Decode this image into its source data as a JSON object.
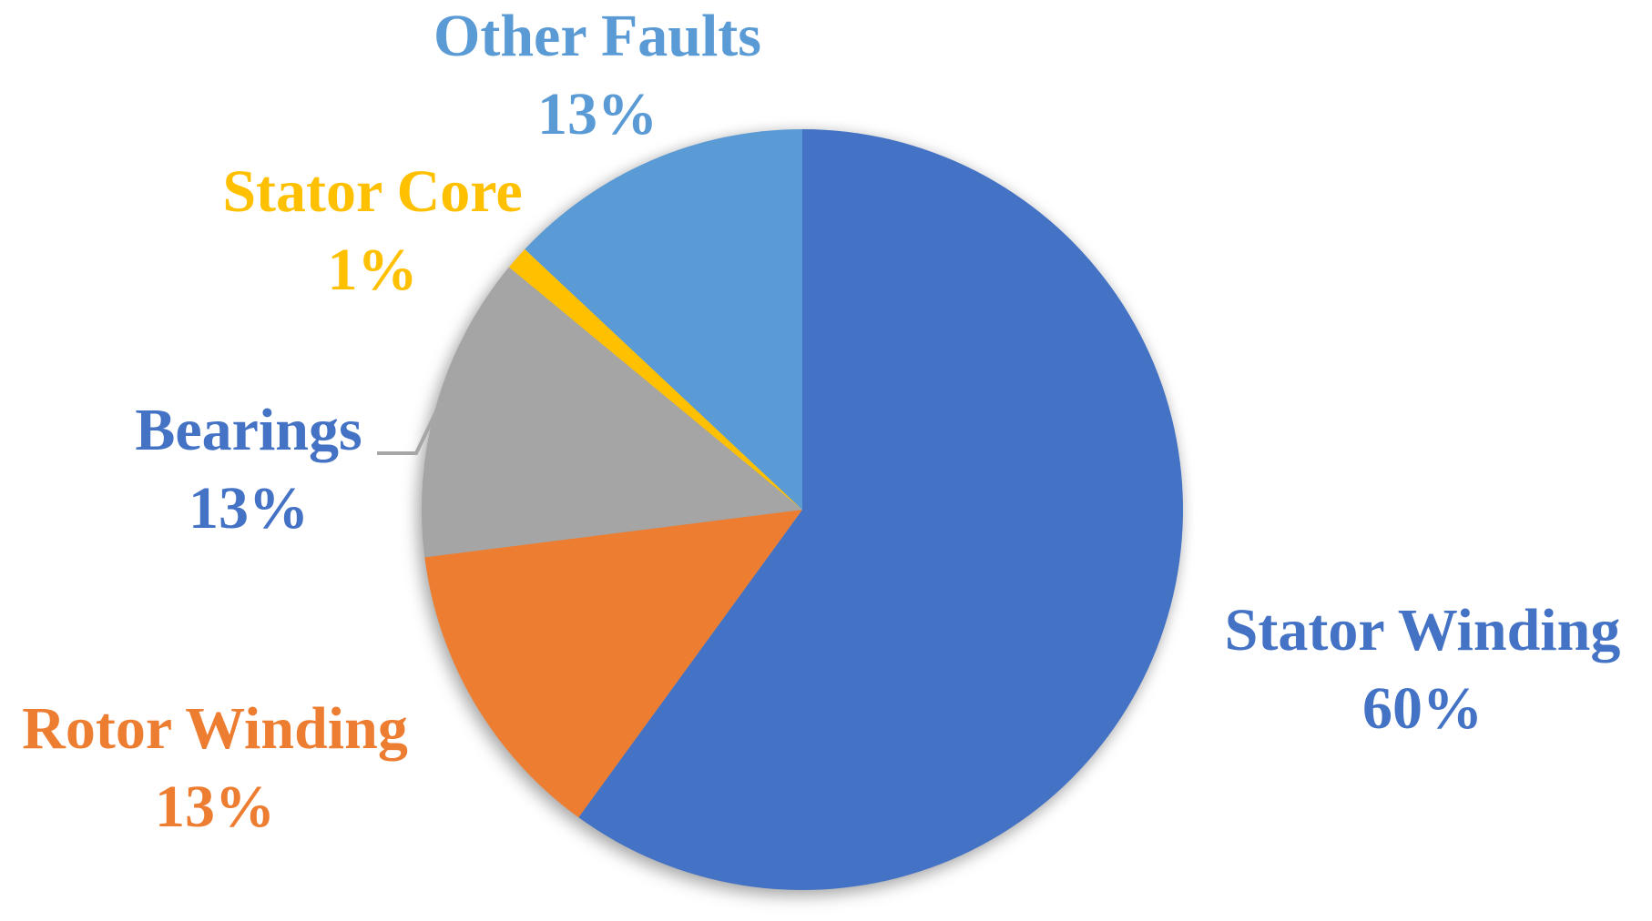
{
  "figure": {
    "background_color": "#FFFFFF",
    "description": "Pie chart of fault distribution"
  },
  "chart_data": {
    "type": "pie",
    "title": "",
    "start_angle_deg": 0,
    "direction": "clockwise",
    "legend_position": "none",
    "labels_style": "outside-multiline",
    "leader_line_color": "#A6A6A6",
    "categories": [
      "Stator Winding",
      "Rotor Winding",
      "Bearings",
      "Stator Core",
      "Other Faults"
    ],
    "values": [
      60,
      13,
      13,
      1,
      13
    ],
    "slices": [
      {
        "label": "Stator Winding",
        "value": 60,
        "pct_label": "60%",
        "color": "#4472C4",
        "label_color": "#4472C4"
      },
      {
        "label": "Rotor Winding",
        "value": 13,
        "pct_label": "13%",
        "color": "#ED7D31",
        "label_color": "#ED7D31"
      },
      {
        "label": "Bearings",
        "value": 13,
        "pct_label": "13%",
        "color": "#A5A5A5",
        "label_color": "#4472C4"
      },
      {
        "label": "Stator Core",
        "value": 1,
        "pct_label": "1%",
        "color": "#FFC000",
        "label_color": "#FFC000"
      },
      {
        "label": "Other Faults",
        "value": 13,
        "pct_label": "13%",
        "color": "#5B9BD5",
        "label_color": "#5B9BD5"
      }
    ]
  }
}
